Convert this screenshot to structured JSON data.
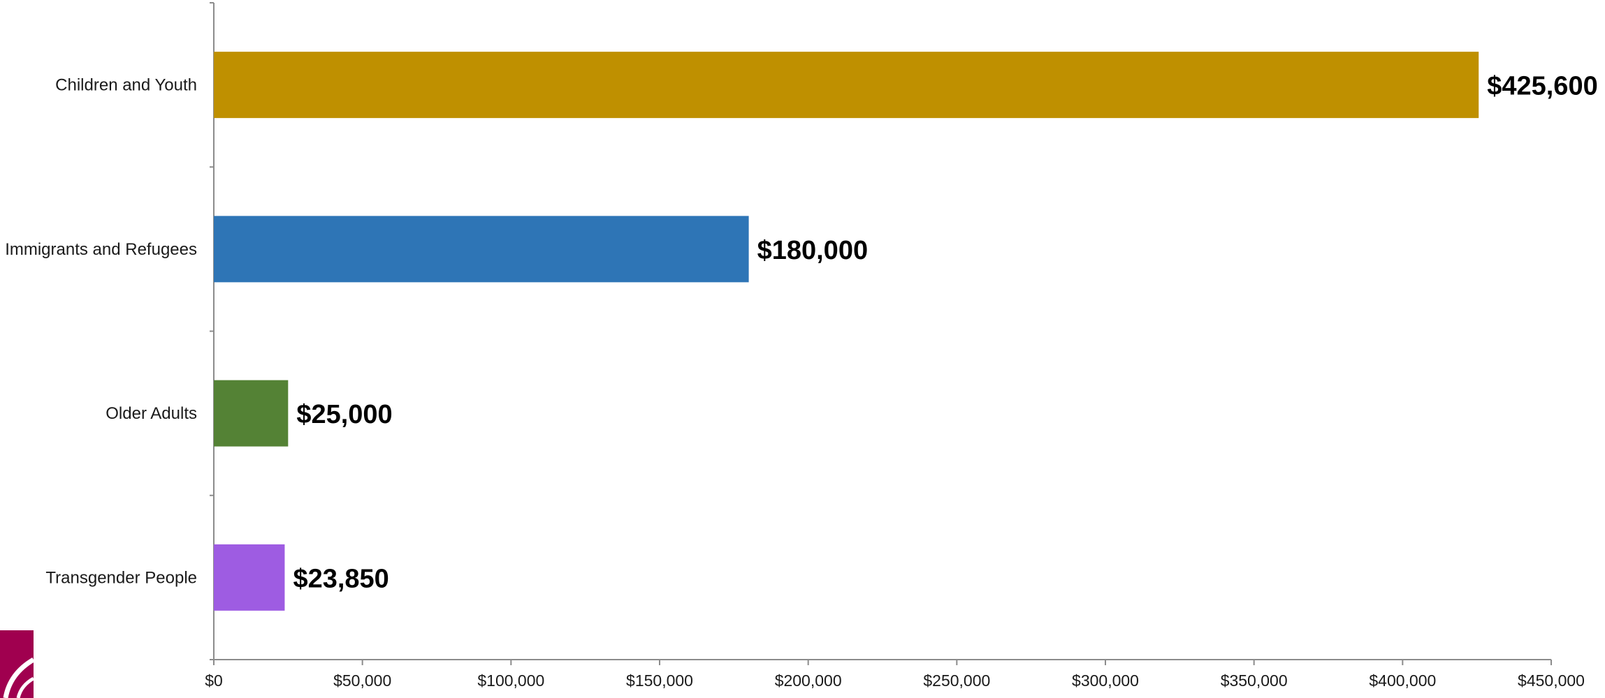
{
  "chart_data": {
    "type": "bar",
    "orientation": "horizontal",
    "categories": [
      "Children and Youth",
      "Immigrants and Refugees",
      "Older Adults",
      "Transgender People"
    ],
    "values": [
      425600,
      180000,
      25000,
      23850
    ],
    "data_labels": [
      "$425,600",
      "$180,000",
      "$25,000",
      "$23,850"
    ],
    "colors": [
      "#bf9000",
      "#2e75b6",
      "#548235",
      "#9e5ce2"
    ],
    "xlim": [
      0,
      450000
    ],
    "x_ticks": [
      0,
      50000,
      100000,
      150000,
      200000,
      250000,
      300000,
      350000,
      400000,
      450000
    ],
    "x_tick_labels": [
      "$0",
      "$50,000",
      "$100,000",
      "$150,000",
      "$200,000",
      "$250,000",
      "$300,000",
      "$350,000",
      "$400,000",
      "$450,000"
    ],
    "grid": false,
    "legend": "none",
    "title": "",
    "xlabel": "",
    "ylabel": ""
  },
  "logo": {
    "icon": "brand-logo-icon",
    "color": "#a0004f"
  }
}
